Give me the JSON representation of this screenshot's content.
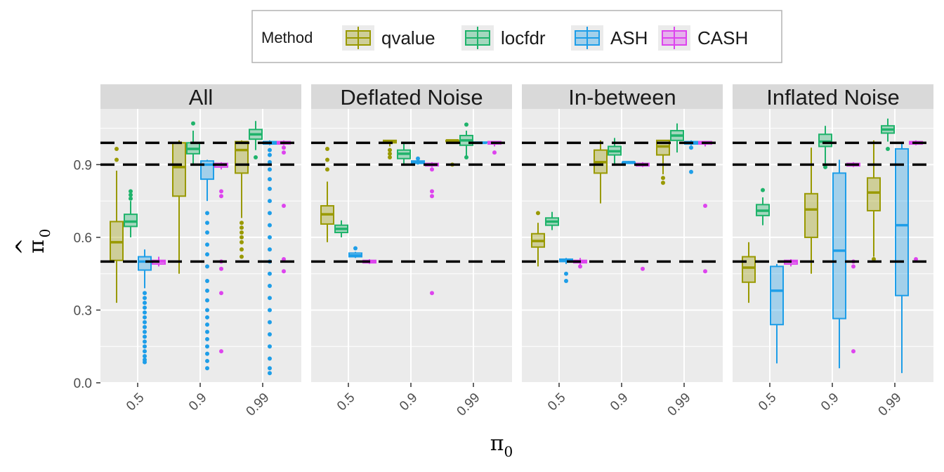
{
  "chart_data": {
    "type": "boxplot",
    "xlabel": "π",
    "xlabel_subscript": "0",
    "ylabel": "π",
    "ylabel_subscript": "0",
    "ylabel_hat": "^",
    "x_categories": [
      "0.5",
      "0.9",
      "0.99"
    ],
    "ylim": [
      0.0,
      1.13
    ],
    "y_ticks": [
      "0.0",
      "0.3",
      "0.6",
      "0.9"
    ],
    "y_tick_values": [
      0.0,
      0.3,
      0.6,
      0.9
    ],
    "reference_lines": [
      0.5,
      0.9,
      0.99
    ],
    "legend": {
      "title": "Method",
      "placement": "top",
      "entries": [
        {
          "name": "qvalue",
          "color": "#999900"
        },
        {
          "name": "locfdr",
          "color": "#1fb36b"
        },
        {
          "name": "ASH",
          "color": "#1e9ee8"
        },
        {
          "name": "CASH",
          "color": "#dd44ee"
        }
      ]
    },
    "panels": [
      {
        "title": "All",
        "boxes": [
          {
            "x": "0.5",
            "method": "qvalue",
            "q1": 0.505,
            "median": 0.58,
            "q3": 0.665,
            "lo": 0.33,
            "hi": 0.875,
            "outliers": [
              0.92,
              0.965
            ]
          },
          {
            "x": "0.5",
            "method": "locfdr",
            "q1": 0.645,
            "median": 0.665,
            "q3": 0.695,
            "lo": 0.6,
            "hi": 0.75,
            "outliers": [
              0.76,
              0.775,
              0.79
            ]
          },
          {
            "x": "0.5",
            "method": "ASH",
            "q1": 0.465,
            "median": 0.5,
            "q3": 0.52,
            "lo": 0.39,
            "hi": 0.55,
            "outliers": [
              0.37,
              0.35,
              0.33,
              0.31,
              0.29,
              0.27,
              0.25,
              0.23,
              0.21,
              0.19,
              0.17,
              0.15,
              0.13,
              0.11,
              0.095,
              0.085
            ]
          },
          {
            "x": "0.5",
            "method": "CASH",
            "q1": 0.49,
            "median": 0.5,
            "q3": 0.505,
            "lo": 0.48,
            "hi": 0.52,
            "outliers": []
          },
          {
            "x": "0.9",
            "method": "qvalue",
            "q1": 0.77,
            "median": 0.89,
            "q3": 0.99,
            "lo": 0.45,
            "hi": 1.0,
            "outliers": []
          },
          {
            "x": "0.9",
            "method": "locfdr",
            "q1": 0.945,
            "median": 0.965,
            "q3": 0.99,
            "lo": 0.9,
            "hi": 1.04,
            "outliers": [
              1.07
            ]
          },
          {
            "x": "0.9",
            "method": "ASH",
            "q1": 0.84,
            "median": 0.9,
            "q3": 0.915,
            "lo": 0.75,
            "hi": 0.92,
            "outliers": [
              0.7,
              0.66,
              0.62,
              0.57,
              0.53,
              0.48,
              0.42,
              0.38,
              0.34,
              0.3,
              0.27,
              0.24,
              0.21,
              0.18,
              0.15,
              0.12,
              0.09,
              0.06
            ]
          },
          {
            "x": "0.9",
            "method": "CASH",
            "q1": 0.89,
            "median": 0.9,
            "q3": 0.905,
            "lo": 0.88,
            "hi": 0.91,
            "outliers": [
              0.79,
              0.77,
              0.5,
              0.47,
              0.37,
              0.13
            ]
          },
          {
            "x": "0.99",
            "method": "qvalue",
            "q1": 0.865,
            "median": 0.96,
            "q3": 0.995,
            "lo": 0.68,
            "hi": 1.0,
            "outliers": [
              0.66,
              0.64,
              0.62,
              0.6,
              0.58,
              0.55,
              0.52
            ]
          },
          {
            "x": "0.99",
            "method": "locfdr",
            "q1": 1.005,
            "median": 1.025,
            "q3": 1.045,
            "lo": 0.96,
            "hi": 1.08,
            "outliers": [
              0.93
            ]
          },
          {
            "x": "0.99",
            "method": "ASH",
            "q1": 0.985,
            "median": 0.99,
            "q3": 0.995,
            "lo": 0.98,
            "hi": 1.0,
            "outliers": [
              0.96,
              0.94,
              0.91,
              0.88,
              0.84,
              0.8,
              0.75,
              0.7,
              0.65,
              0.6,
              0.55,
              0.5,
              0.45,
              0.4,
              0.35,
              0.3,
              0.25,
              0.2,
              0.15,
              0.1,
              0.06,
              0.04
            ]
          },
          {
            "x": "0.99",
            "method": "CASH",
            "q1": 0.985,
            "median": 0.99,
            "q3": 0.995,
            "lo": 0.98,
            "hi": 1.0,
            "outliers": [
              0.97,
              0.95,
              0.73,
              0.51,
              0.46
            ]
          }
        ]
      },
      {
        "title": "Deflated Noise",
        "boxes": [
          {
            "x": "0.5",
            "method": "qvalue",
            "q1": 0.655,
            "median": 0.695,
            "q3": 0.73,
            "lo": 0.58,
            "hi": 0.83,
            "outliers": [
              0.88,
              0.92,
              0.965
            ]
          },
          {
            "x": "0.5",
            "method": "locfdr",
            "q1": 0.62,
            "median": 0.635,
            "q3": 0.65,
            "lo": 0.6,
            "hi": 0.67,
            "outliers": []
          },
          {
            "x": "0.5",
            "method": "ASH",
            "q1": 0.52,
            "median": 0.525,
            "q3": 0.535,
            "lo": 0.515,
            "hi": 0.54,
            "outliers": [
              0.555
            ]
          },
          {
            "x": "0.5",
            "method": "CASH",
            "q1": 0.495,
            "median": 0.5,
            "q3": 0.505,
            "lo": 0.49,
            "hi": 0.51,
            "outliers": []
          },
          {
            "x": "0.9",
            "method": "qvalue",
            "q1": 0.99,
            "median": 0.995,
            "q3": 1.0,
            "lo": 0.975,
            "hi": 1.0,
            "outliers": [
              0.96,
              0.945,
              0.93
            ]
          },
          {
            "x": "0.9",
            "method": "locfdr",
            "q1": 0.925,
            "median": 0.945,
            "q3": 0.96,
            "lo": 0.9,
            "hi": 0.985,
            "outliers": []
          },
          {
            "x": "0.9",
            "method": "ASH",
            "q1": 0.905,
            "median": 0.91,
            "q3": 0.915,
            "lo": 0.9,
            "hi": 0.92,
            "outliers": [
              0.925
            ]
          },
          {
            "x": "0.9",
            "method": "CASH",
            "q1": 0.895,
            "median": 0.9,
            "q3": 0.905,
            "lo": 0.89,
            "hi": 0.91,
            "outliers": [
              0.88,
              0.79,
              0.77,
              0.37
            ]
          },
          {
            "x": "0.99",
            "method": "qvalue",
            "q1": 0.995,
            "median": 1.0,
            "q3": 1.0,
            "lo": 0.99,
            "hi": 1.0,
            "outliers": [
              0.9
            ]
          },
          {
            "x": "0.99",
            "method": "locfdr",
            "q1": 0.98,
            "median": 1.0,
            "q3": 1.02,
            "lo": 0.93,
            "hi": 1.04,
            "outliers": [
              1.065,
              0.93
            ]
          },
          {
            "x": "0.99",
            "method": "ASH",
            "q1": 0.99,
            "median": 0.99,
            "q3": 0.993,
            "lo": 0.985,
            "hi": 0.995,
            "outliers": []
          },
          {
            "x": "0.99",
            "method": "CASH",
            "q1": 0.985,
            "median": 0.99,
            "q3": 0.995,
            "lo": 0.975,
            "hi": 0.995,
            "outliers": [
              0.95
            ]
          }
        ]
      },
      {
        "title": "In-between",
        "boxes": [
          {
            "x": "0.5",
            "method": "qvalue",
            "q1": 0.56,
            "median": 0.585,
            "q3": 0.615,
            "lo": 0.48,
            "hi": 0.66,
            "outliers": [
              0.7
            ]
          },
          {
            "x": "0.5",
            "method": "locfdr",
            "q1": 0.65,
            "median": 0.665,
            "q3": 0.68,
            "lo": 0.63,
            "hi": 0.705,
            "outliers": []
          },
          {
            "x": "0.5",
            "method": "ASH",
            "q1": 0.5,
            "median": 0.505,
            "q3": 0.51,
            "lo": 0.49,
            "hi": 0.515,
            "outliers": [
              0.45,
              0.42
            ]
          },
          {
            "x": "0.5",
            "method": "CASH",
            "q1": 0.495,
            "median": 0.5,
            "q3": 0.505,
            "lo": 0.485,
            "hi": 0.515,
            "outliers": [
              0.48
            ]
          },
          {
            "x": "0.9",
            "method": "qvalue",
            "q1": 0.865,
            "median": 0.91,
            "q3": 0.96,
            "lo": 0.74,
            "hi": 1.0,
            "outliers": []
          },
          {
            "x": "0.9",
            "method": "locfdr",
            "q1": 0.94,
            "median": 0.955,
            "q3": 0.975,
            "lo": 0.9,
            "hi": 1.01,
            "outliers": []
          },
          {
            "x": "0.9",
            "method": "ASH",
            "q1": 0.905,
            "median": 0.91,
            "q3": 0.91,
            "lo": 0.905,
            "hi": 0.915,
            "outliers": []
          },
          {
            "x": "0.9",
            "method": "CASH",
            "q1": 0.895,
            "median": 0.9,
            "q3": 0.905,
            "lo": 0.89,
            "hi": 0.91,
            "outliers": [
              0.47
            ]
          },
          {
            "x": "0.99",
            "method": "qvalue",
            "q1": 0.94,
            "median": 0.975,
            "q3": 1.0,
            "lo": 0.86,
            "hi": 1.0,
            "outliers": [
              0.845,
              0.825
            ]
          },
          {
            "x": "0.99",
            "method": "locfdr",
            "q1": 1.0,
            "median": 1.02,
            "q3": 1.04,
            "lo": 0.95,
            "hi": 1.07,
            "outliers": []
          },
          {
            "x": "0.99",
            "method": "ASH",
            "q1": 0.985,
            "median": 0.99,
            "q3": 0.995,
            "lo": 0.98,
            "hi": 1.0,
            "outliers": [
              0.97,
              0.87
            ]
          },
          {
            "x": "0.99",
            "method": "CASH",
            "q1": 0.985,
            "median": 0.99,
            "q3": 0.995,
            "lo": 0.975,
            "hi": 0.995,
            "outliers": [
              0.73,
              0.46
            ]
          }
        ]
      },
      {
        "title": "Inflated Noise",
        "boxes": [
          {
            "x": "0.5",
            "method": "qvalue",
            "q1": 0.415,
            "median": 0.475,
            "q3": 0.52,
            "lo": 0.33,
            "hi": 0.58,
            "outliers": []
          },
          {
            "x": "0.5",
            "method": "locfdr",
            "q1": 0.69,
            "median": 0.71,
            "q3": 0.735,
            "lo": 0.65,
            "hi": 0.765,
            "outliers": [
              0.795
            ]
          },
          {
            "x": "0.5",
            "method": "ASH",
            "q1": 0.24,
            "median": 0.38,
            "q3": 0.48,
            "lo": 0.08,
            "hi": 0.49,
            "outliers": []
          },
          {
            "x": "0.5",
            "method": "CASH",
            "q1": 0.49,
            "median": 0.5,
            "q3": 0.505,
            "lo": 0.48,
            "hi": 0.51,
            "outliers": []
          },
          {
            "x": "0.9",
            "method": "qvalue",
            "q1": 0.6,
            "median": 0.715,
            "q3": 0.78,
            "lo": 0.45,
            "hi": 0.97,
            "outliers": []
          },
          {
            "x": "0.9",
            "method": "locfdr",
            "q1": 0.975,
            "median": 0.995,
            "q3": 1.025,
            "lo": 0.9,
            "hi": 1.06,
            "outliers": [
              0.89
            ]
          },
          {
            "x": "0.9",
            "method": "ASH",
            "q1": 0.265,
            "median": 0.545,
            "q3": 0.865,
            "lo": 0.06,
            "hi": 0.92,
            "outliers": []
          },
          {
            "x": "0.9",
            "method": "CASH",
            "q1": 0.895,
            "median": 0.9,
            "q3": 0.905,
            "lo": 0.89,
            "hi": 0.91,
            "outliers": [
              0.5,
              0.48,
              0.13
            ]
          },
          {
            "x": "0.99",
            "method": "qvalue",
            "q1": 0.71,
            "median": 0.785,
            "q3": 0.845,
            "lo": 0.52,
            "hi": 1.0,
            "outliers": [
              0.51
            ]
          },
          {
            "x": "0.99",
            "method": "locfdr",
            "q1": 1.03,
            "median": 1.045,
            "q3": 1.06,
            "lo": 0.995,
            "hi": 1.09,
            "outliers": [
              0.965
            ]
          },
          {
            "x": "0.99",
            "method": "ASH",
            "q1": 0.36,
            "median": 0.65,
            "q3": 0.965,
            "lo": 0.04,
            "hi": 0.99,
            "outliers": []
          },
          {
            "x": "0.99",
            "method": "CASH",
            "q1": 0.985,
            "median": 0.99,
            "q3": 0.995,
            "lo": 0.98,
            "hi": 1.0,
            "outliers": [
              0.51
            ]
          }
        ]
      }
    ]
  }
}
